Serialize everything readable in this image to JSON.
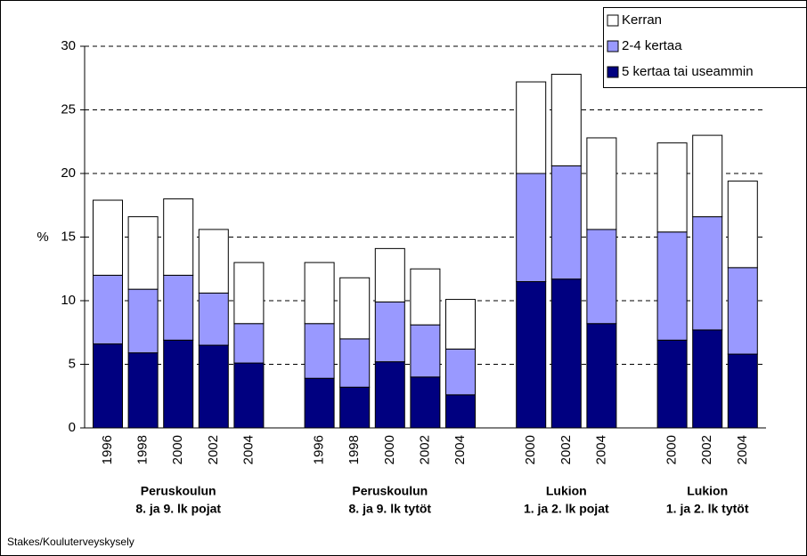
{
  "chart_data": {
    "type": "stacked_bar",
    "ylabel": "%",
    "source": "Stakes/Kouluterveyskysely",
    "categories": [
      "1996",
      "1998",
      "2000",
      "2002",
      "2004",
      null,
      "1996",
      "1998",
      "2000",
      "2002",
      "2004",
      null,
      "2000",
      "2002",
      "2004",
      null,
      "2000",
      "2002",
      "2004"
    ],
    "group_labels": [
      [
        "Peruskoulun",
        "8. ja 9. lk pojat"
      ],
      [
        "Peruskoulun",
        "8. ja 9. lk tytöt"
      ],
      [
        "Lukion",
        "1. ja 2. lk pojat"
      ],
      [
        "Lukion",
        "1. ja 2. lk tytöt"
      ]
    ],
    "series": [
      {
        "name": "5 kertaa tai useammin",
        "color": "#000080",
        "values": [
          6.6,
          5.9,
          6.9,
          6.5,
          5.1,
          null,
          3.9,
          3.2,
          5.2,
          4.0,
          2.6,
          null,
          11.5,
          11.7,
          8.2,
          null,
          6.9,
          7.7,
          5.8
        ]
      },
      {
        "name": "2-4 kertaa",
        "color": "#9999ff",
        "values": [
          5.4,
          5.0,
          5.1,
          4.1,
          3.1,
          null,
          4.3,
          3.8,
          4.7,
          4.1,
          3.6,
          null,
          8.5,
          8.9,
          7.4,
          null,
          8.5,
          8.9,
          6.8
        ]
      },
      {
        "name": "Kerran",
        "color": "#ffffff",
        "values": [
          5.9,
          5.7,
          6.0,
          5.0,
          4.8,
          null,
          4.8,
          4.8,
          4.2,
          4.4,
          3.9,
          null,
          7.2,
          7.2,
          7.2,
          null,
          7.0,
          6.4,
          6.8
        ]
      }
    ],
    "ylim": [
      0,
      30
    ],
    "yticks": [
      0,
      5,
      10,
      15,
      20,
      25,
      30
    ],
    "grid": true,
    "legend": "top-right"
  }
}
